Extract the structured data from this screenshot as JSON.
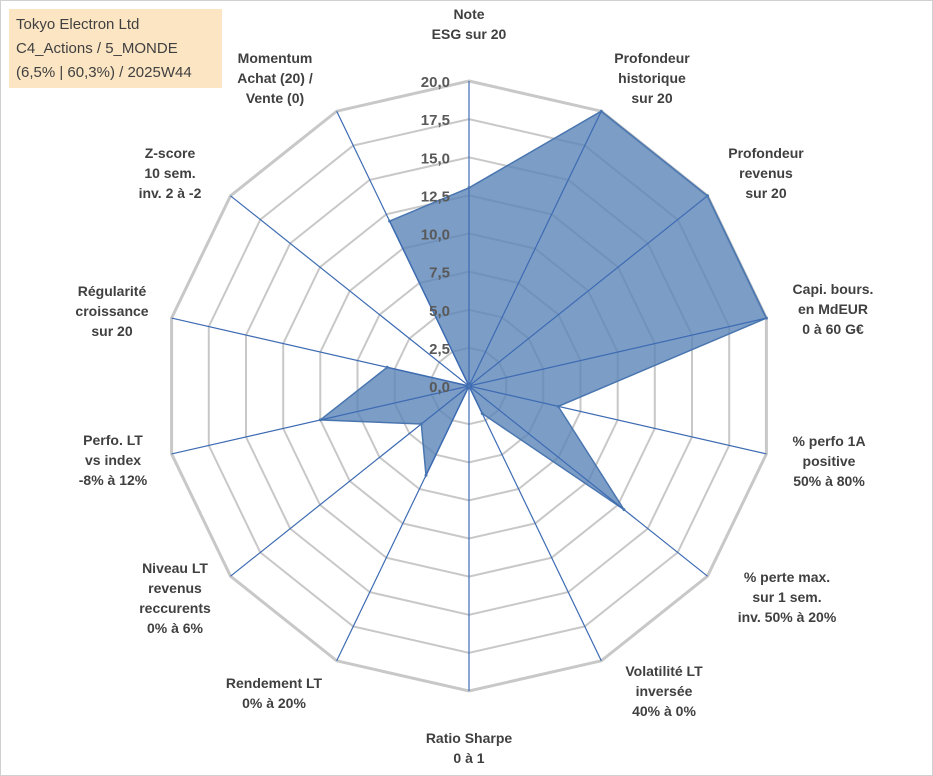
{
  "title_lines": [
    "Tokyo Electron Ltd",
    "C4_Actions / 5_MONDE",
    "(6,5% | 60,3%) / 2025W44"
  ],
  "chart_data": {
    "type": "radar",
    "rmin": 0,
    "rmax": 20,
    "tick_labels": [
      "0,0",
      "2,5",
      "5,0",
      "7,5",
      "10,0",
      "12,5",
      "15,0",
      "17,5",
      "20,0"
    ],
    "grid": true,
    "colors": {
      "fill": "#5b84b8",
      "line": "#4a76b0",
      "grid": "#c8c8c8",
      "spoke": "#3d6bb3"
    },
    "axes": [
      {
        "label": [
          "Note",
          "ESG sur 20"
        ],
        "value": 13.0
      },
      {
        "label": [
          "Profondeur",
          "historique",
          "sur 20"
        ],
        "value": 20.0
      },
      {
        "label": [
          "Profondeur",
          "revenus",
          "sur 20"
        ],
        "value": 20.0
      },
      {
        "label": [
          "Capi. bours.",
          "en MdEUR",
          "0 à 60 G€"
        ],
        "value": 20.0
      },
      {
        "label": [
          "% perfo 1A",
          "positive",
          "50% à 80%"
        ],
        "value": 6.0
      },
      {
        "label": [
          "% perte max.",
          "sur 1 sem.",
          "inv. 50% à 20%"
        ],
        "value": 13.0
      },
      {
        "label": [
          "Volatilité LT",
          "inversée",
          "40% à 0%"
        ],
        "value": 2.0
      },
      {
        "label": [
          "Ratio Sharpe",
          "0 à 1"
        ],
        "value": 0.0
      },
      {
        "label": [
          "Rendement LT",
          "0% à 20%"
        ],
        "value": 6.5
      },
      {
        "label": [
          "Niveau LT",
          "revenus",
          "reccurents",
          "0% à 6%"
        ],
        "value": 4.0
      },
      {
        "label": [
          "Perfo. LT",
          "vs index",
          "-8% à 12%"
        ],
        "value": 10.0
      },
      {
        "label": [
          "Régularité",
          "croissance",
          "sur 20"
        ],
        "value": 5.5
      },
      {
        "label": [
          "Z-score",
          "10 sem.",
          "inv. 2 à -2"
        ],
        "value": 0.0
      },
      {
        "label": [
          "Momentum",
          "Achat (20) /",
          "Vente (0)"
        ],
        "value": 12.0
      }
    ]
  }
}
